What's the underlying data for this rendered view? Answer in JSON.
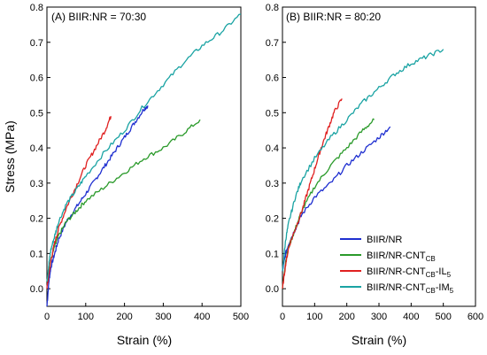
{
  "chart_data": [
    {
      "type": "line",
      "title": "(A) BIIR:NR = 70:30",
      "xlabel": "Strain (%)",
      "ylabel": "Stress (MPa)",
      "xlim": [
        0,
        500
      ],
      "ylim": [
        -0.05,
        0.8
      ],
      "xticks": [
        "0",
        "100",
        "200",
        "300",
        "400",
        "500"
      ],
      "yticks": [
        "0.0",
        "0.1",
        "0.2",
        "0.3",
        "0.4",
        "0.5",
        "0.6",
        "0.7",
        "0.8"
      ],
      "xtick_values": [
        0,
        100,
        200,
        300,
        400,
        500
      ],
      "ytick_values": [
        0.0,
        0.1,
        0.2,
        0.3,
        0.4,
        0.5,
        0.6,
        0.7,
        0.8
      ],
      "grid": false,
      "series": [
        {
          "name": "BIIR/NR",
          "color": "#1f2fd0",
          "x": [
            0,
            5,
            10,
            20,
            30,
            50,
            75,
            100,
            125,
            150,
            175,
            200,
            225,
            250,
            260
          ],
          "y": [
            -0.05,
            0.02,
            0.06,
            0.1,
            0.14,
            0.19,
            0.23,
            0.27,
            0.31,
            0.35,
            0.39,
            0.43,
            0.47,
            0.51,
            0.52
          ]
        },
        {
          "name": "BIIR/NR-CNT_CB",
          "color": "#2a9a2a",
          "x": [
            0,
            5,
            10,
            20,
            30,
            50,
            75,
            100,
            150,
            200,
            250,
            300,
            350,
            395
          ],
          "y": [
            0.02,
            0.05,
            0.08,
            0.12,
            0.15,
            0.19,
            0.22,
            0.25,
            0.29,
            0.33,
            0.37,
            0.4,
            0.44,
            0.48
          ]
        },
        {
          "name": "BIIR/NR-CNT_CB-IL_5",
          "color": "#e02020",
          "x": [
            0,
            5,
            10,
            20,
            30,
            50,
            75,
            100,
            125,
            150,
            165
          ],
          "y": [
            0.0,
            0.04,
            0.08,
            0.13,
            0.17,
            0.23,
            0.29,
            0.35,
            0.4,
            0.45,
            0.49
          ]
        },
        {
          "name": "BIIR/NR-CNT_CB-IM_5",
          "color": "#1aa3a3",
          "x": [
            0,
            5,
            10,
            20,
            30,
            50,
            75,
            100,
            150,
            200,
            250,
            300,
            350,
            400,
            450,
            500
          ],
          "y": [
            0.02,
            0.07,
            0.11,
            0.15,
            0.19,
            0.24,
            0.28,
            0.32,
            0.39,
            0.45,
            0.52,
            0.58,
            0.64,
            0.69,
            0.73,
            0.78
          ]
        }
      ]
    },
    {
      "type": "line",
      "title": "(B) BIIR:NR = 80:20",
      "xlabel": "Strain (%)",
      "ylabel": "",
      "xlim": [
        0,
        600
      ],
      "ylim": [
        -0.05,
        0.8
      ],
      "xticks": [
        "0",
        "100",
        "200",
        "300",
        "400",
        "500",
        "600"
      ],
      "yticks": [
        "0.0",
        "0.1",
        "0.2",
        "0.3",
        "0.4",
        "0.5",
        "0.6",
        "0.7",
        "0.8"
      ],
      "xtick_values": [
        0,
        100,
        200,
        300,
        400,
        500,
        600
      ],
      "ytick_values": [
        0.0,
        0.1,
        0.2,
        0.3,
        0.4,
        0.5,
        0.6,
        0.7,
        0.8
      ],
      "grid": false,
      "legend": "bottom-right",
      "series": [
        {
          "name": "BIIR/NR",
          "color": "#1f2fd0",
          "x": [
            0,
            10,
            20,
            40,
            60,
            100,
            150,
            200,
            250,
            300,
            335
          ],
          "y": [
            0.05,
            0.1,
            0.13,
            0.17,
            0.21,
            0.26,
            0.3,
            0.35,
            0.39,
            0.43,
            0.46
          ]
        },
        {
          "name": "BIIR/NR-CNT_CB",
          "color": "#2a9a2a",
          "x": [
            0,
            10,
            20,
            40,
            60,
            100,
            150,
            200,
            250,
            285
          ],
          "y": [
            0.0,
            0.08,
            0.12,
            0.17,
            0.22,
            0.29,
            0.35,
            0.4,
            0.45,
            0.48
          ]
        },
        {
          "name": "BIIR/NR-CNT_CB-IL_5",
          "color": "#e02020",
          "x": [
            0,
            10,
            20,
            40,
            60,
            80,
            100,
            120,
            140,
            160,
            185
          ],
          "y": [
            0.0,
            0.07,
            0.12,
            0.17,
            0.22,
            0.28,
            0.34,
            0.4,
            0.45,
            0.5,
            0.54
          ]
        },
        {
          "name": "BIIR/NR-CNT_CB-IM_5",
          "color": "#1aa3a3",
          "x": [
            0,
            10,
            20,
            40,
            60,
            100,
            150,
            200,
            250,
            300,
            350,
            400,
            450,
            500
          ],
          "y": [
            0.05,
            0.14,
            0.19,
            0.26,
            0.31,
            0.37,
            0.43,
            0.48,
            0.53,
            0.57,
            0.61,
            0.64,
            0.66,
            0.68
          ]
        }
      ]
    }
  ],
  "legend": {
    "items": [
      {
        "base": "BIIR/NR",
        "sub1": "",
        "mid": "",
        "sub2": "",
        "color": "#1f2fd0"
      },
      {
        "base": "BIIR/NR-CNT",
        "sub1": "CB",
        "mid": "",
        "sub2": "",
        "color": "#2a9a2a"
      },
      {
        "base": "BIIR/NR-CNT",
        "sub1": "CB",
        "mid": "-IL",
        "sub2": "5",
        "color": "#e02020"
      },
      {
        "base": "BIIR/NR-CNT",
        "sub1": "CB",
        "mid": "-IM",
        "sub2": "5",
        "color": "#1aa3a3"
      }
    ]
  }
}
